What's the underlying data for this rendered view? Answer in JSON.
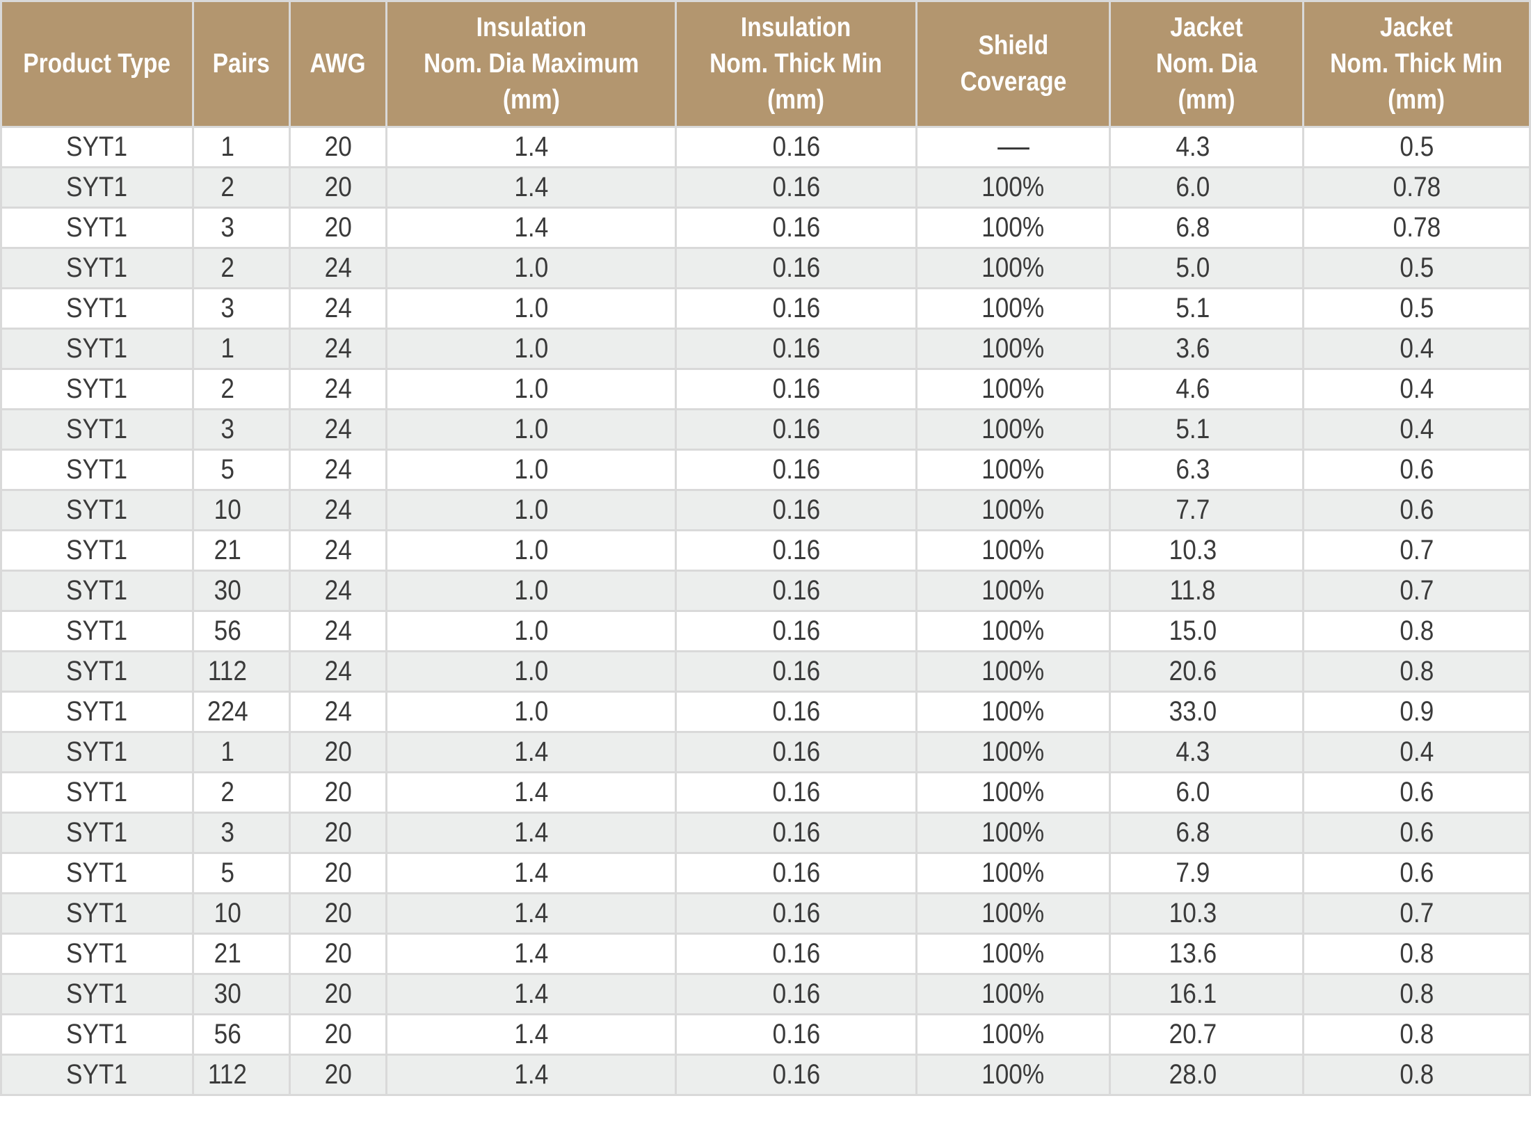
{
  "table": {
    "headers": [
      "Product Type",
      "Pairs",
      "AWG",
      "Insulation\nNom.  Dia Maximum\n(mm)",
      "Insulation\nNom.  Thick Min\n(mm)",
      "Shield\nCoverage",
      "Jacket\nNom. Dia\n(mm)",
      "Jacket\nNom. Thick Min\n(mm)"
    ],
    "rows": [
      [
        "SYT1",
        "1",
        "20",
        "1.4",
        "0.16",
        "—",
        "4.3",
        "0.5"
      ],
      [
        "SYT1",
        "2",
        "20",
        "1.4",
        "0.16",
        "100%",
        "6.0",
        "0.78"
      ],
      [
        "SYT1",
        "3",
        "20",
        "1.4",
        "0.16",
        "100%",
        "6.8",
        "0.78"
      ],
      [
        "SYT1",
        "2",
        "24",
        "1.0",
        "0.16",
        "100%",
        "5.0",
        "0.5"
      ],
      [
        "SYT1",
        "3",
        "24",
        "1.0",
        "0.16",
        "100%",
        "5.1",
        "0.5"
      ],
      [
        "SYT1",
        "1",
        "24",
        "1.0",
        "0.16",
        "100%",
        "3.6",
        "0.4"
      ],
      [
        "SYT1",
        "2",
        "24",
        "1.0",
        "0.16",
        "100%",
        "4.6",
        "0.4"
      ],
      [
        "SYT1",
        "3",
        "24",
        "1.0",
        "0.16",
        "100%",
        "5.1",
        "0.4"
      ],
      [
        "SYT1",
        "5",
        "24",
        "1.0",
        "0.16",
        "100%",
        "6.3",
        "0.6"
      ],
      [
        "SYT1",
        "10",
        "24",
        "1.0",
        "0.16",
        "100%",
        "7.7",
        "0.6"
      ],
      [
        "SYT1",
        "21",
        "24",
        "1.0",
        "0.16",
        "100%",
        "10.3",
        "0.7"
      ],
      [
        "SYT1",
        "30",
        "24",
        "1.0",
        "0.16",
        "100%",
        "11.8",
        "0.7"
      ],
      [
        "SYT1",
        "56",
        "24",
        "1.0",
        "0.16",
        "100%",
        "15.0",
        "0.8"
      ],
      [
        "SYT1",
        "112",
        "24",
        "1.0",
        "0.16",
        "100%",
        "20.6",
        "0.8"
      ],
      [
        "SYT1",
        "224",
        "24",
        "1.0",
        "0.16",
        "100%",
        "33.0",
        "0.9"
      ],
      [
        "SYT1",
        "1",
        "20",
        "1.4",
        "0.16",
        "100%",
        "4.3",
        "0.4"
      ],
      [
        "SYT1",
        "2",
        "20",
        "1.4",
        "0.16",
        "100%",
        "6.0",
        "0.6"
      ],
      [
        "SYT1",
        "3",
        "20",
        "1.4",
        "0.16",
        "100%",
        "6.8",
        "0.6"
      ],
      [
        "SYT1",
        "5",
        "20",
        "1.4",
        "0.16",
        "100%",
        "7.9",
        "0.6"
      ],
      [
        "SYT1",
        "10",
        "20",
        "1.4",
        "0.16",
        "100%",
        "10.3",
        "0.7"
      ],
      [
        "SYT1",
        "21",
        "20",
        "1.4",
        "0.16",
        "100%",
        "13.6",
        "0.8"
      ],
      [
        "SYT1",
        "30",
        "20",
        "1.4",
        "0.16",
        "100%",
        "16.1",
        "0.8"
      ],
      [
        "SYT1",
        "56",
        "20",
        "1.4",
        "0.16",
        "100%",
        "20.7",
        "0.8"
      ],
      [
        "SYT1",
        "112",
        "20",
        "1.4",
        "0.16",
        "100%",
        "28.0",
        "0.8"
      ]
    ]
  },
  "colors": {
    "header_background": "#b3966f",
    "header_text": "#ffffff",
    "row_alt_background": "#eceeed",
    "body_text": "#3a3a3a",
    "grid_line": "#d9d9d9"
  }
}
